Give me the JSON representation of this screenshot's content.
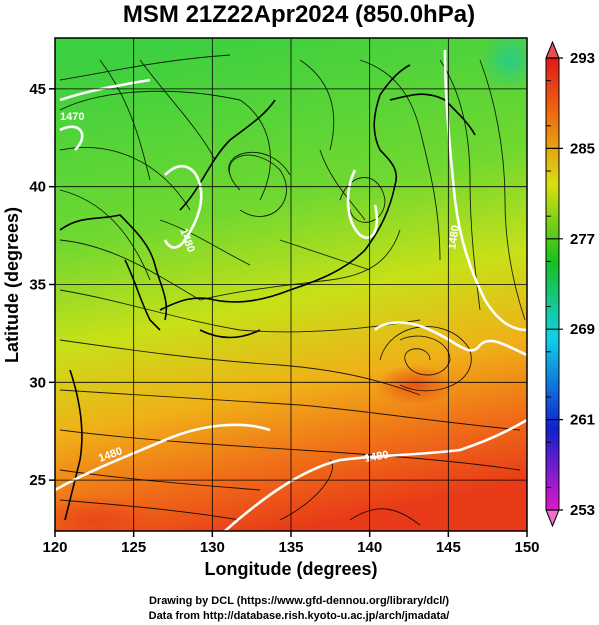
{
  "chart_data": {
    "type": "heatmap",
    "title": "MSM 21Z22Apr2024 (850.0hPa)",
    "xlabel": "Longitude (degrees)",
    "ylabel": "Latitude  (degrees)",
    "xlim": [
      120,
      150
    ],
    "ylim": [
      22.4,
      47.6
    ],
    "x_ticks": [
      "120",
      "125",
      "130",
      "135",
      "140",
      "145",
      "150"
    ],
    "y_ticks": [
      "25",
      "30",
      "35",
      "40",
      "45"
    ],
    "grid": true,
    "field": "temperature",
    "colorbar": {
      "min": 253,
      "max": 293,
      "ticks": [
        "253",
        "261",
        "269",
        "277",
        "285",
        "293"
      ],
      "colors": [
        "#e018c8",
        "#1020d0",
        "#10d0e8",
        "#18c020",
        "#d8e010",
        "#f07010",
        "#e01818"
      ],
      "placement": "right"
    },
    "contour_labels": [
      "1480",
      "1480",
      "1480",
      "1480",
      "1470"
    ],
    "overlays": [
      "streamlines",
      "coastlines"
    ]
  },
  "credits": {
    "line1": "Drawing by DCL (https://www.gfd-dennou.org/library/dcl/)",
    "line2": "Data from http://database.rish.kyoto-u.ac.jp/arch/jmadata/"
  }
}
